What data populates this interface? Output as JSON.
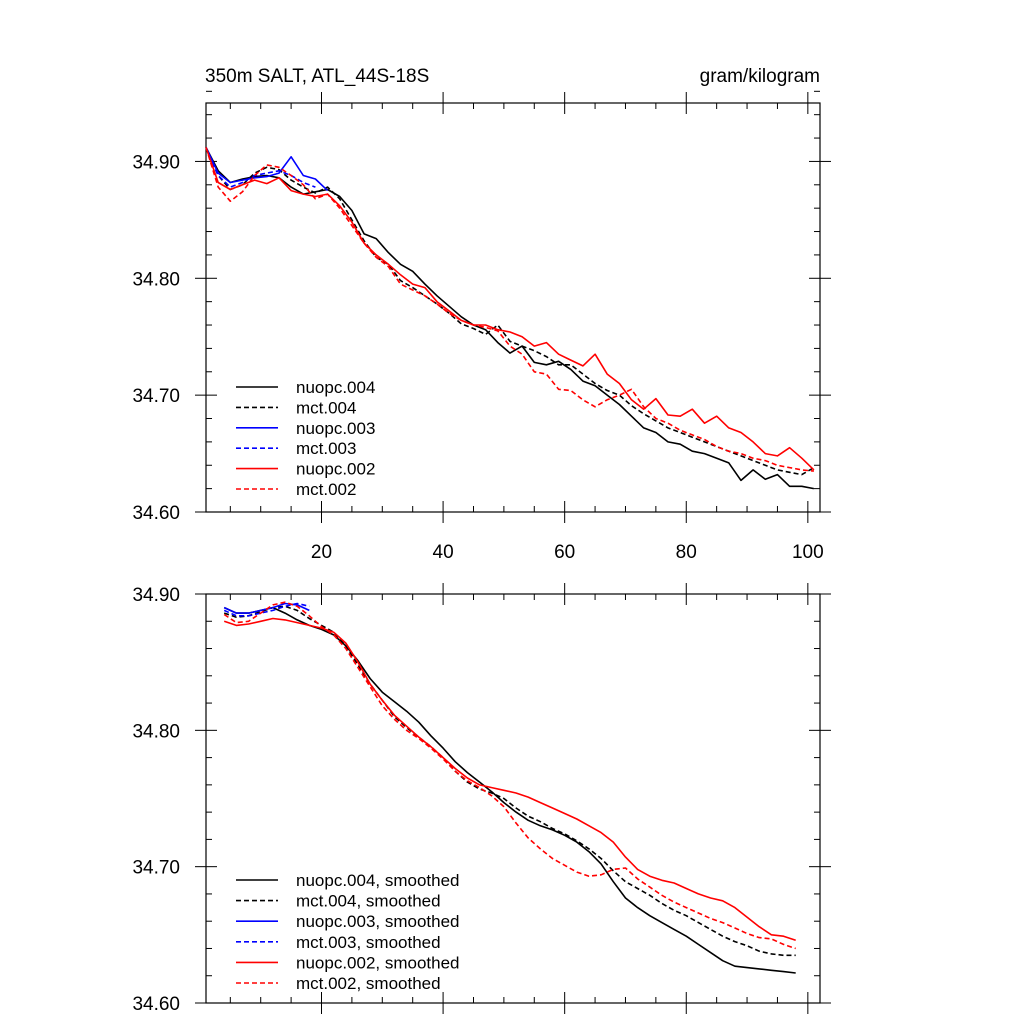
{
  "chart_data": [
    {
      "type": "line",
      "title": "350m SALT, ATL_44S-18S",
      "units": "gram/kilogram",
      "xlabel": "",
      "ylabel": "",
      "xlim": [
        1,
        102
      ],
      "ylim": [
        34.6,
        34.95
      ],
      "xticks": [
        20,
        40,
        60,
        80,
        100
      ],
      "yticks": [
        34.6,
        34.7,
        34.8,
        34.9
      ],
      "ytick_labels": [
        "34.60",
        "34.70",
        "34.80",
        "34.90"
      ],
      "legend_position": "bottom-left",
      "series": [
        {
          "name": "nuopc.004",
          "color": "#000000",
          "dash": "solid",
          "x": [
            1,
            3,
            5,
            7,
            9,
            11,
            13,
            15,
            17,
            19,
            21,
            23,
            25,
            27,
            29,
            31,
            33,
            35,
            37,
            39,
            41,
            43,
            45,
            47,
            49,
            51,
            53,
            55,
            57,
            59,
            61,
            63,
            65,
            67,
            69,
            71,
            73,
            75,
            77,
            79,
            81,
            83,
            85,
            87,
            89,
            91,
            93,
            95,
            97,
            99,
            101
          ],
          "y": [
            34.912,
            34.892,
            34.882,
            34.885,
            34.887,
            34.888,
            34.886,
            34.878,
            34.872,
            34.874,
            34.876,
            34.87,
            34.858,
            34.838,
            34.834,
            34.822,
            34.812,
            34.806,
            34.795,
            34.785,
            34.776,
            34.767,
            34.76,
            34.756,
            34.745,
            34.736,
            34.742,
            34.728,
            34.726,
            34.729,
            34.722,
            34.712,
            34.708,
            34.7,
            34.692,
            34.682,
            34.672,
            34.668,
            34.66,
            34.658,
            34.652,
            34.65,
            34.646,
            34.642,
            34.627,
            34.636,
            34.628,
            34.632,
            34.622,
            34.622,
            34.62
          ]
        },
        {
          "name": "mct.004",
          "color": "#000000",
          "dash": "dashed",
          "x": [
            1,
            3,
            5,
            7,
            9,
            11,
            13,
            15,
            17,
            19,
            21,
            23,
            25,
            27,
            29,
            31,
            33,
            35,
            37,
            39,
            41,
            43,
            45,
            47,
            49,
            51,
            53,
            55,
            57,
            59,
            61,
            63,
            65,
            67,
            69,
            71,
            73,
            75,
            77,
            79,
            81,
            83,
            85,
            87,
            89,
            91,
            93,
            95,
            97,
            99,
            101
          ],
          "y": [
            34.912,
            34.888,
            34.876,
            34.88,
            34.89,
            34.895,
            34.893,
            34.884,
            34.878,
            34.873,
            34.878,
            34.868,
            34.85,
            34.832,
            34.818,
            34.812,
            34.798,
            34.792,
            34.785,
            34.778,
            34.77,
            34.761,
            34.757,
            34.752,
            34.76,
            34.746,
            34.742,
            34.738,
            34.733,
            34.726,
            34.726,
            34.718,
            34.71,
            34.704,
            34.7,
            34.691,
            34.684,
            34.678,
            34.672,
            34.668,
            34.664,
            34.66,
            34.656,
            34.652,
            34.648,
            34.644,
            34.64,
            34.636,
            34.634,
            34.632,
            34.638
          ]
        },
        {
          "name": "nuopc.003",
          "color": "#0000ff",
          "dash": "solid",
          "x": [
            1,
            3,
            5,
            7,
            9,
            11,
            13,
            15,
            17,
            19,
            21
          ],
          "y": [
            34.912,
            34.89,
            34.882,
            34.884,
            34.886,
            34.887,
            34.89,
            34.904,
            34.888,
            34.885,
            34.875
          ]
        },
        {
          "name": "mct.003",
          "color": "#0000ff",
          "dash": "dashed",
          "x": [
            1,
            3,
            5,
            7,
            9,
            11,
            13,
            15,
            17,
            19
          ],
          "y": [
            34.912,
            34.888,
            34.878,
            34.882,
            34.888,
            34.89,
            34.892,
            34.888,
            34.882,
            34.878
          ]
        },
        {
          "name": "nuopc.002",
          "color": "#ff0000",
          "dash": "solid",
          "x": [
            1,
            3,
            5,
            7,
            9,
            11,
            13,
            15,
            17,
            19,
            21,
            23,
            25,
            27,
            29,
            31,
            33,
            35,
            37,
            39,
            41,
            43,
            45,
            47,
            49,
            51,
            53,
            55,
            57,
            59,
            61,
            63,
            65,
            67,
            69,
            71,
            73,
            75,
            77,
            79,
            81,
            83,
            85,
            87,
            89,
            91,
            93,
            95,
            97,
            99,
            101
          ],
          "y": [
            34.912,
            34.882,
            34.876,
            34.88,
            34.884,
            34.881,
            34.886,
            34.875,
            34.872,
            34.87,
            34.872,
            34.862,
            34.848,
            34.83,
            34.82,
            34.812,
            34.803,
            34.795,
            34.792,
            34.78,
            34.772,
            34.764,
            34.76,
            34.76,
            34.756,
            34.754,
            34.75,
            34.742,
            34.745,
            34.735,
            34.73,
            34.725,
            34.735,
            34.718,
            34.71,
            34.696,
            34.688,
            34.697,
            34.683,
            34.682,
            34.688,
            34.676,
            34.682,
            34.672,
            34.668,
            34.66,
            34.65,
            34.648,
            34.655,
            34.646,
            34.636
          ]
        },
        {
          "name": "mct.002",
          "color": "#ff0000",
          "dash": "dashed",
          "x": [
            1,
            3,
            5,
            7,
            9,
            11,
            13,
            15,
            17,
            19,
            21,
            23,
            25,
            27,
            29,
            31,
            33,
            35,
            37,
            39,
            41,
            43,
            45,
            47,
            49,
            51,
            53,
            55,
            57,
            59,
            61,
            63,
            65,
            67,
            69,
            71,
            73,
            75,
            77,
            79,
            81,
            83,
            85,
            87,
            89,
            91,
            93,
            95,
            97,
            99,
            101
          ],
          "y": [
            34.912,
            34.878,
            34.866,
            34.874,
            34.888,
            34.897,
            34.895,
            34.888,
            34.88,
            34.868,
            34.872,
            34.86,
            34.845,
            34.83,
            34.818,
            34.81,
            34.795,
            34.79,
            34.785,
            34.778,
            34.77,
            34.764,
            34.76,
            34.758,
            34.755,
            34.742,
            34.735,
            34.72,
            34.718,
            34.705,
            34.704,
            34.696,
            34.69,
            34.696,
            34.7,
            34.705,
            34.69,
            34.68,
            34.676,
            34.67,
            34.666,
            34.662,
            34.656,
            34.652,
            34.65,
            34.646,
            34.644,
            34.64,
            34.638,
            34.636,
            34.635
          ]
        }
      ]
    },
    {
      "type": "line",
      "title": "",
      "xlabel": "",
      "ylabel": "",
      "xlim": [
        1,
        102
      ],
      "ylim": [
        34.6,
        34.9
      ],
      "xticks": [
        20,
        40,
        60,
        80,
        100
      ],
      "yticks": [
        34.6,
        34.7,
        34.8,
        34.9
      ],
      "ytick_labels": [
        "34.60",
        "34.70",
        "34.80",
        "34.90"
      ],
      "legend_position": "bottom-left",
      "series": [
        {
          "name": "nuopc.004, smoothed",
          "color": "#000000",
          "dash": "solid",
          "x": [
            4,
            6,
            8,
            10,
            12,
            14,
            16,
            18,
            20,
            22,
            24,
            26,
            28,
            30,
            32,
            34,
            36,
            38,
            40,
            42,
            44,
            46,
            48,
            50,
            52,
            54,
            56,
            58,
            60,
            62,
            64,
            66,
            68,
            70,
            72,
            74,
            76,
            78,
            80,
            82,
            84,
            86,
            88,
            90,
            92,
            94,
            96,
            98
          ],
          "y": [
            34.89,
            34.886,
            34.886,
            34.888,
            34.89,
            34.886,
            34.881,
            34.877,
            34.874,
            34.87,
            34.862,
            34.851,
            34.838,
            34.828,
            34.821,
            34.814,
            34.806,
            34.796,
            34.787,
            34.777,
            34.769,
            34.762,
            34.755,
            34.747,
            34.74,
            34.734,
            34.73,
            34.727,
            34.723,
            34.718,
            34.711,
            34.702,
            34.689,
            34.677,
            34.67,
            34.664,
            34.659,
            34.654,
            34.649,
            34.643,
            34.637,
            34.631,
            34.627,
            34.626,
            34.625,
            34.624,
            34.623,
            34.622
          ]
        },
        {
          "name": "mct.004, smoothed",
          "color": "#000000",
          "dash": "dashed",
          "x": [
            4,
            6,
            8,
            10,
            12,
            14,
            16,
            18,
            20,
            22,
            24,
            26,
            28,
            30,
            32,
            34,
            36,
            38,
            40,
            42,
            44,
            46,
            48,
            50,
            52,
            54,
            56,
            58,
            60,
            62,
            64,
            66,
            68,
            70,
            72,
            74,
            76,
            78,
            80,
            82,
            84,
            86,
            88,
            90,
            92,
            94,
            96,
            98
          ],
          "y": [
            34.886,
            34.883,
            34.884,
            34.887,
            34.89,
            34.891,
            34.888,
            34.882,
            34.877,
            34.872,
            34.862,
            34.848,
            34.834,
            34.822,
            34.81,
            34.802,
            34.795,
            34.788,
            34.78,
            34.77,
            34.762,
            34.757,
            34.754,
            34.75,
            34.743,
            34.737,
            34.733,
            34.728,
            34.724,
            34.719,
            34.713,
            34.706,
            34.697,
            34.689,
            34.684,
            34.679,
            34.673,
            34.668,
            34.664,
            34.659,
            34.654,
            34.649,
            34.645,
            34.642,
            34.638,
            34.636,
            34.635,
            34.635
          ]
        },
        {
          "name": "nuopc.003, smoothed",
          "color": "#0000ff",
          "dash": "solid",
          "x": [
            4,
            6,
            8,
            10,
            12,
            14,
            16,
            18
          ],
          "y": [
            34.89,
            34.886,
            34.886,
            34.888,
            34.89,
            34.893,
            34.892,
            34.888
          ]
        },
        {
          "name": "mct.003, smoothed",
          "color": "#0000ff",
          "dash": "dashed",
          "x": [
            4,
            6,
            8,
            10,
            12,
            14,
            16,
            18
          ],
          "y": [
            34.888,
            34.884,
            34.884,
            34.886,
            34.888,
            34.891,
            34.893,
            34.891
          ]
        },
        {
          "name": "nuopc.002, smoothed",
          "color": "#ff0000",
          "dash": "solid",
          "x": [
            4,
            6,
            8,
            10,
            12,
            14,
            16,
            18,
            20,
            22,
            24,
            26,
            28,
            30,
            32,
            34,
            36,
            38,
            40,
            42,
            44,
            46,
            48,
            50,
            52,
            54,
            56,
            58,
            60,
            62,
            64,
            66,
            68,
            70,
            72,
            74,
            76,
            78,
            80,
            82,
            84,
            86,
            88,
            90,
            92,
            94,
            96,
            98
          ],
          "y": [
            34.88,
            34.877,
            34.878,
            34.88,
            34.882,
            34.881,
            34.879,
            34.877,
            34.875,
            34.872,
            34.864,
            34.85,
            34.834,
            34.822,
            34.811,
            34.803,
            34.795,
            34.788,
            34.78,
            34.772,
            34.765,
            34.76,
            34.758,
            34.756,
            34.754,
            34.751,
            34.747,
            34.743,
            34.739,
            34.735,
            34.73,
            34.725,
            34.718,
            34.707,
            34.698,
            34.693,
            34.69,
            34.688,
            34.684,
            34.68,
            34.677,
            34.675,
            34.67,
            34.663,
            34.656,
            34.65,
            34.649,
            34.646
          ]
        },
        {
          "name": "mct.002, smoothed",
          "color": "#ff0000",
          "dash": "dashed",
          "x": [
            4,
            6,
            8,
            10,
            12,
            14,
            16,
            18,
            20,
            22,
            24,
            26,
            28,
            30,
            32,
            34,
            36,
            38,
            40,
            42,
            44,
            46,
            48,
            50,
            52,
            54,
            56,
            58,
            60,
            62,
            64,
            66,
            68,
            70,
            72,
            74,
            76,
            78,
            80,
            82,
            84,
            86,
            88,
            90,
            92,
            94,
            96,
            98
          ],
          "y": [
            34.885,
            34.879,
            34.88,
            34.886,
            34.892,
            34.894,
            34.891,
            34.884,
            34.876,
            34.87,
            34.86,
            34.846,
            34.832,
            34.818,
            34.808,
            34.8,
            34.794,
            34.787,
            34.779,
            34.77,
            34.763,
            34.758,
            34.752,
            34.744,
            34.732,
            34.721,
            34.713,
            34.706,
            34.701,
            34.696,
            34.693,
            34.694,
            34.698,
            34.699,
            34.691,
            34.685,
            34.679,
            34.674,
            34.67,
            34.666,
            34.662,
            34.659,
            34.655,
            34.651,
            34.648,
            34.647,
            34.643,
            34.64
          ]
        }
      ]
    }
  ]
}
